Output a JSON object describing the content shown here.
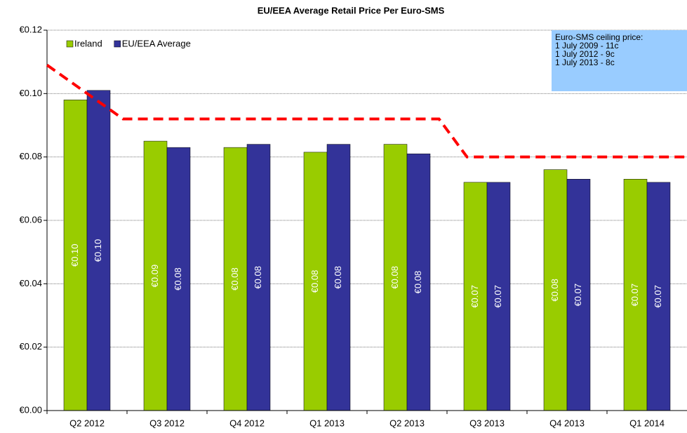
{
  "chart_data": {
    "type": "bar",
    "title": "EU/EEA  Average Retail Price Per Euro-SMS",
    "categories": [
      "Q2 2012",
      "Q3 2012",
      "Q4 2012",
      "Q1 2013",
      "Q2 2013",
      "Q3 2013",
      "Q4 2013",
      "Q1 2014"
    ],
    "series": [
      {
        "name": "Ireland",
        "color": "#99cc00",
        "values": [
          0.098,
          0.085,
          0.083,
          0.0815,
          0.084,
          0.072,
          0.076,
          0.073
        ],
        "value_labels": [
          "€0.10",
          "€0.09",
          "€0.08",
          "€0.08",
          "€0.08",
          "€0.07",
          "€0.08",
          "€0.07"
        ]
      },
      {
        "name": "EU/EEA Average",
        "color": "#333399",
        "values": [
          0.101,
          0.083,
          0.084,
          0.084,
          0.081,
          0.072,
          0.073,
          0.072
        ],
        "value_labels": [
          "€0.10",
          "€0.08",
          "€0.08",
          "€0.08",
          "€0.08",
          "€0.07",
          "€0.07",
          "€0.07"
        ]
      }
    ],
    "ceiling_line": {
      "color": "#ff0000",
      "x": [
        -0.5,
        0.45,
        0.75,
        4.4,
        4.75,
        7.5
      ],
      "values": [
        0.109,
        0.092,
        0.092,
        0.092,
        0.08,
        0.08
      ]
    },
    "annotation": [
      "Euro-SMS ceiling price:",
      "1 July 2009 - 11c",
      "1 July 2012 - 9c",
      "1 July 2013 - 8c"
    ],
    "ylim": [
      0,
      0.12
    ],
    "yticks": [
      {
        "value": 0,
        "label": "€0.00"
      },
      {
        "value": 0.02,
        "label": "€0.02"
      },
      {
        "value": 0.04,
        "label": "€0.04"
      },
      {
        "value": 0.06,
        "label": "€0.06"
      },
      {
        "value": 0.08,
        "label": "€0.08"
      },
      {
        "value": 0.1,
        "label": "€0.10"
      },
      {
        "value": 0.12,
        "label": "€0.12"
      }
    ],
    "grid": true,
    "legend": "top-left"
  }
}
